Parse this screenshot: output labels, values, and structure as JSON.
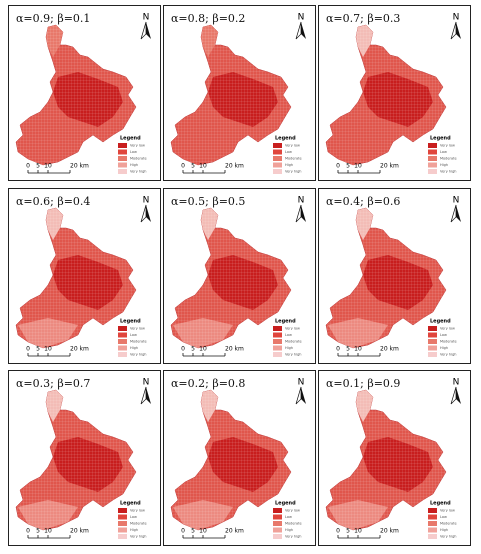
{
  "panels": [
    {
      "title": "α=0.9; β=0.1"
    },
    {
      "title": "α=0.8; β=0.2"
    },
    {
      "title": "α=0.7; β=0.3"
    },
    {
      "title": "α=0.6; β=0.4"
    },
    {
      "title": "α=0.5; β=0.5"
    },
    {
      "title": "α=0.4; β=0.6"
    },
    {
      "title": "α=0.3; β=0.7"
    },
    {
      "title": "α=0.2; β=0.8"
    },
    {
      "title": "α=0.1; β=0.9"
    }
  ],
  "legend": {
    "title": "Legend",
    "items": [
      "Very low",
      "Low",
      "Moderate",
      "High",
      "Very high"
    ],
    "colors": [
      "#c81e1e",
      "#e0453c",
      "#e8786a",
      "#f0a199",
      "#f6cccc"
    ]
  },
  "scale": {
    "labels": [
      "0",
      "5",
      "10",
      "20 km"
    ]
  },
  "north": "N"
}
